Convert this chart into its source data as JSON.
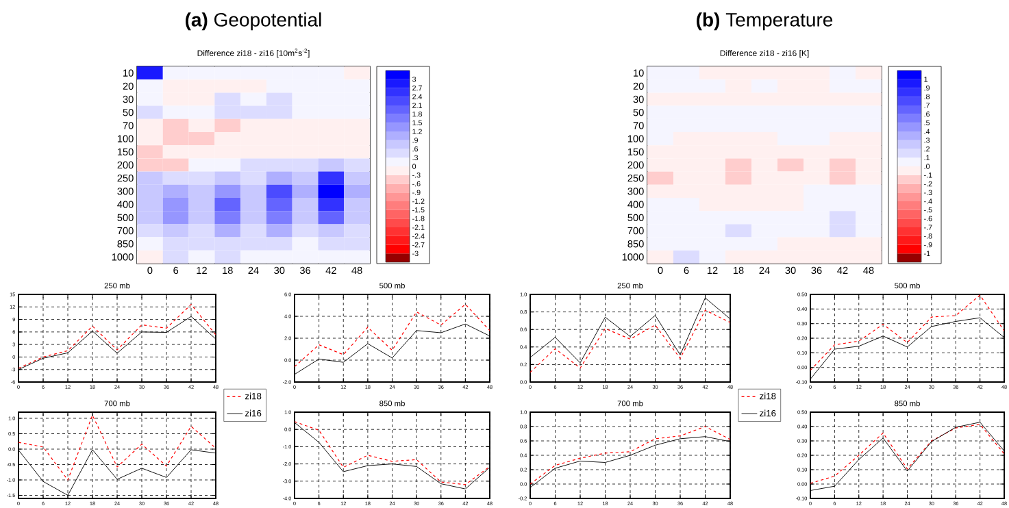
{
  "chart_data": [
    {
      "type": "heatmap",
      "title": "**(a)** Geopotential",
      "subtitle": "Difference zi18 - zi16 [10m$^{2}$s$^{-2}$]",
      "categories": [
        "0",
        "6",
        "12",
        "18",
        "24",
        "30",
        "36",
        "42",
        "48"
      ],
      "y_categories": [
        "10",
        "20",
        "30",
        "50",
        "70",
        "100",
        "150",
        "200",
        "250",
        "300",
        "400",
        "500",
        "700",
        "850",
        "1000"
      ],
      "cells": [
        [
          2.7,
          0.1,
          0.1,
          0.1,
          0.1,
          0.1,
          0.1,
          0.1,
          -0.1
        ],
        [
          0.1,
          -0.2,
          -0.1,
          -0.1,
          -0.1,
          0.1,
          0.1,
          0.1,
          0.1
        ],
        [
          0.1,
          -0.1,
          -0.1,
          0.4,
          0.1,
          0.4,
          0.1,
          0.1,
          0.1
        ],
        [
          0.4,
          0.1,
          0.1,
          0.4,
          0.4,
          0.4,
          0.1,
          0.1,
          0.1
        ],
        [
          -0.1,
          -0.4,
          -0.1,
          -0.4,
          -0.1,
          -0.1,
          -0.1,
          -0.1,
          -0.1
        ],
        [
          -0.1,
          -0.4,
          -0.4,
          -0.1,
          -0.1,
          -0.1,
          -0.1,
          -0.1,
          -0.1
        ],
        [
          -0.4,
          -0.1,
          -0.1,
          -0.1,
          -0.1,
          -0.1,
          -0.1,
          -0.1,
          -0.1
        ],
        [
          -0.4,
          -0.4,
          0.1,
          0.1,
          0.4,
          0.4,
          0.4,
          0.7,
          0.4
        ],
        [
          0.7,
          0.4,
          0.4,
          0.7,
          0.4,
          1.0,
          0.7,
          2.5,
          0.7
        ],
        [
          0.7,
          1.0,
          0.7,
          1.3,
          0.7,
          2.2,
          1.0,
          3.1,
          1.0
        ],
        [
          0.7,
          1.3,
          0.7,
          1.9,
          0.7,
          1.9,
          0.7,
          2.5,
          0.7
        ],
        [
          0.7,
          1.3,
          0.7,
          1.6,
          0.7,
          1.6,
          0.7,
          1.9,
          0.7
        ],
        [
          0.4,
          0.7,
          0.4,
          1.0,
          0.4,
          1.0,
          0.4,
          0.7,
          0.4
        ],
        [
          0.1,
          0.4,
          0.4,
          0.4,
          0.4,
          0.4,
          0.1,
          0.4,
          0.4
        ],
        [
          -0.1,
          0.4,
          0.1,
          0.4,
          0.1,
          0.1,
          0.1,
          0.1,
          0.1
        ]
      ],
      "clim": [
        -3.3,
        3.3
      ],
      "cticks": [
        3,
        {
          "value": 2.7,
          "label": "2.7"
        },
        {
          "value": 2.4,
          "label": "2.4"
        },
        {
          "value": 2.1,
          "label": "2.1"
        },
        {
          "value": 1.8,
          "label": "1.8"
        },
        {
          "value": 1.5,
          "label": "1.5"
        },
        {
          "value": 1.2,
          "label": "1.2"
        },
        {
          "value": 0.9,
          "label": ".9"
        },
        {
          "value": 0.6,
          "label": ".6"
        },
        {
          "value": 0.3,
          "label": ".3"
        },
        0,
        {
          "value": -0.3,
          "label": "-.3"
        },
        {
          "value": -0.6,
          "label": "-.6"
        },
        {
          "value": -0.9,
          "label": "-.9"
        },
        {
          "value": -1.2,
          "label": "-1.2"
        },
        {
          "value": -1.5,
          "label": "-1.5"
        },
        {
          "value": -1.8,
          "label": "-1.8"
        },
        {
          "value": -2.1,
          "label": "-2.1"
        },
        {
          "value": -2.4,
          "label": "-2.4"
        },
        {
          "value": -2.7,
          "label": "-2.7"
        },
        -3
      ]
    },
    {
      "type": "heatmap",
      "title": "**(b)** Temperature",
      "subtitle": "Difference zi18 - zi16 [K]",
      "categories": [
        "0",
        "6",
        "12",
        "18",
        "24",
        "30",
        "36",
        "42",
        "48"
      ],
      "y_categories": [
        "10",
        "20",
        "30",
        "50",
        "70",
        "100",
        "150",
        "200",
        "250",
        "300",
        "400",
        "500",
        "700",
        "850",
        "1000"
      ],
      "cells": [
        [
          0.05,
          0.05,
          -0.05,
          -0.05,
          -0.05,
          -0.05,
          -0.05,
          0.05,
          -0.05
        ],
        [
          0.05,
          0.05,
          0.05,
          -0.05,
          0.05,
          -0.05,
          -0.05,
          0.05,
          0.05
        ],
        [
          -0.05,
          -0.05,
          -0.05,
          -0.05,
          -0.05,
          -0.05,
          -0.05,
          -0.05,
          -0.05
        ],
        [
          0.05,
          0.05,
          0.05,
          0.05,
          0.05,
          0.05,
          0.05,
          0.05,
          0.05
        ],
        [
          0.05,
          0.05,
          0.05,
          0.05,
          0.05,
          0.05,
          0.05,
          0.05,
          0.05
        ],
        [
          0.05,
          -0.05,
          -0.05,
          -0.05,
          -0.05,
          0.05,
          0.05,
          -0.05,
          -0.05
        ],
        [
          -0.05,
          -0.05,
          -0.05,
          -0.05,
          -0.05,
          -0.05,
          -0.05,
          -0.05,
          -0.05
        ],
        [
          -0.05,
          -0.05,
          -0.05,
          -0.15,
          -0.05,
          -0.15,
          -0.05,
          -0.15,
          -0.05
        ],
        [
          -0.15,
          -0.05,
          -0.05,
          -0.15,
          -0.05,
          -0.05,
          -0.05,
          -0.15,
          -0.05
        ],
        [
          -0.05,
          -0.05,
          -0.05,
          -0.05,
          -0.05,
          -0.05,
          0.05,
          0.05,
          0.05
        ],
        [
          0.05,
          0.05,
          -0.05,
          -0.05,
          -0.05,
          -0.05,
          0.05,
          0.05,
          0.05
        ],
        [
          0.05,
          0.05,
          0.05,
          0.05,
          0.05,
          0.05,
          0.05,
          0.15,
          0.05
        ],
        [
          0.05,
          0.05,
          0.05,
          0.15,
          0.05,
          0.05,
          0.05,
          0.15,
          0.05
        ],
        [
          0.05,
          0.05,
          0.05,
          0.05,
          0.05,
          -0.05,
          -0.05,
          -0.05,
          -0.05
        ],
        [
          -0.05,
          0.15,
          0.05,
          -0.05,
          -0.05,
          -0.05,
          -0.05,
          -0.05,
          -0.05
        ]
      ],
      "clim": [
        -1.1,
        1.1
      ],
      "cticks": [
        1,
        {
          "value": 0.9,
          "label": ".9"
        },
        {
          "value": 0.8,
          "label": ".8"
        },
        {
          "value": 0.7,
          "label": ".7"
        },
        {
          "value": 0.6,
          "label": ".6"
        },
        {
          "value": 0.5,
          "label": ".5"
        },
        {
          "value": 0.4,
          "label": ".4"
        },
        {
          "value": 0.3,
          "label": ".3"
        },
        {
          "value": 0.2,
          "label": ".2"
        },
        {
          "value": 0.1,
          "label": ".1"
        },
        {
          "value": 0,
          "label": ".0"
        },
        {
          "value": -0.1,
          "label": "-.1"
        },
        {
          "value": -0.2,
          "label": "-.2"
        },
        {
          "value": -0.3,
          "label": "-.3"
        },
        {
          "value": -0.4,
          "label": "-.4"
        },
        {
          "value": -0.5,
          "label": "-.5"
        },
        {
          "value": -0.6,
          "label": "-.6"
        },
        {
          "value": -0.7,
          "label": "-.7"
        },
        {
          "value": -0.8,
          "label": "-.8"
        },
        {
          "value": -0.9,
          "label": "-.9"
        },
        -1
      ]
    },
    {
      "type": "line",
      "title": "250 mb",
      "x": [
        0,
        6,
        12,
        18,
        24,
        30,
        36,
        42,
        48
      ],
      "xlim": [
        0,
        48
      ],
      "xticks": [
        0,
        6,
        12,
        18,
        24,
        30,
        36,
        42,
        48
      ],
      "ylim": [
        -6,
        15
      ],
      "yticks": [
        -6,
        -3,
        0,
        3,
        6,
        9,
        12,
        15
      ],
      "grid": true,
      "marker": "none",
      "series": [
        {
          "color": "#ff0000",
          "line_style": "dashed",
          "values": [
            -2.7,
            0.0,
            1.5,
            7.4,
            1.7,
            7.7,
            6.9,
            12.6,
            5.3
          ]
        },
        {
          "color": "#000000",
          "line_style": "solid",
          "values": [
            -3.0,
            -0.3,
            1.0,
            6.2,
            0.9,
            6.0,
            5.9,
            9.7,
            4.3
          ]
        }
      ]
    },
    {
      "type": "line",
      "title": "500 mb",
      "x": [
        0,
        6,
        12,
        18,
        24,
        30,
        36,
        42,
        48
      ],
      "xlim": [
        0,
        48
      ],
      "xticks": [
        0,
        6,
        12,
        18,
        24,
        30,
        36,
        42,
        48
      ],
      "ylim": [
        -2,
        6
      ],
      "yticks": [
        {
          "value": -2,
          "label": "-2.0"
        },
        {
          "value": 0,
          "label": "0.0"
        },
        {
          "value": 2,
          "label": "2.0"
        },
        {
          "value": 4,
          "label": "4.0"
        },
        {
          "value": 6,
          "label": "6.0"
        }
      ],
      "grid": true,
      "marker": "none",
      "series": [
        {
          "color": "#ff0000",
          "line_style": "dashed",
          "values": [
            -0.6,
            1.4,
            0.5,
            3.0,
            0.9,
            4.4,
            3.2,
            5.1,
            2.7
          ]
        },
        {
          "color": "#000000",
          "line_style": "solid",
          "values": [
            -1.3,
            0.1,
            -0.2,
            1.5,
            0.2,
            2.7,
            2.5,
            3.3,
            2.2
          ]
        }
      ]
    },
    {
      "type": "line",
      "title": "250 mb",
      "x": [
        0,
        6,
        12,
        18,
        24,
        30,
        36,
        42,
        48
      ],
      "xlim": [
        0,
        48
      ],
      "xticks": [
        0,
        6,
        12,
        18,
        24,
        30,
        36,
        42,
        48
      ],
      "ylim": [
        0,
        1
      ],
      "yticks": [
        {
          "value": 0,
          "label": "0.0"
        },
        {
          "value": 0.2,
          "label": "0.2"
        },
        {
          "value": 0.4,
          "label": "0.4"
        },
        {
          "value": 0.6,
          "label": "0.6"
        },
        {
          "value": 0.8,
          "label": "0.8"
        },
        {
          "value": 1,
          "label": "1.0"
        }
      ],
      "grid": true,
      "marker": "none",
      "series": [
        {
          "color": "#ff0000",
          "line_style": "dashed",
          "values": [
            0.11,
            0.38,
            0.16,
            0.61,
            0.49,
            0.65,
            0.27,
            0.82,
            0.68
          ]
        },
        {
          "color": "#000000",
          "line_style": "solid",
          "values": [
            0.28,
            0.51,
            0.22,
            0.74,
            0.52,
            0.76,
            0.31,
            0.96,
            0.72
          ]
        }
      ]
    },
    {
      "type": "line",
      "title": "500 mb",
      "x": [
        0,
        6,
        12,
        18,
        24,
        30,
        36,
        42,
        48
      ],
      "xlim": [
        0,
        48
      ],
      "xticks": [
        0,
        6,
        12,
        18,
        24,
        30,
        36,
        42,
        48
      ],
      "ylim": [
        -0.1,
        0.5
      ],
      "yticks": [
        {
          "value": -0.1,
          "label": "-0.10"
        },
        {
          "value": 0,
          "label": "0.00"
        },
        {
          "value": 0.1,
          "label": "0.10"
        },
        {
          "value": 0.2,
          "label": "0.20"
        },
        {
          "value": 0.3,
          "label": "0.30"
        },
        {
          "value": 0.4,
          "label": "0.40"
        },
        {
          "value": 0.5,
          "label": "0.50"
        }
      ],
      "grid": true,
      "marker": "none",
      "series": [
        {
          "color": "#ff0000",
          "line_style": "dashed",
          "values": [
            -0.02,
            0.155,
            0.18,
            0.295,
            0.17,
            0.345,
            0.355,
            0.495,
            0.25
          ]
        },
        {
          "color": "#000000",
          "line_style": "solid",
          "values": [
            -0.08,
            0.125,
            0.145,
            0.215,
            0.14,
            0.28,
            0.315,
            0.34,
            0.205
          ]
        }
      ]
    },
    {
      "type": "line",
      "title": "700 mb",
      "x": [
        0,
        6,
        12,
        18,
        24,
        30,
        36,
        42,
        48
      ],
      "xlim": [
        0,
        48
      ],
      "xticks": [
        0,
        6,
        12,
        18,
        24,
        30,
        36,
        42,
        48
      ],
      "ylim": [
        -1.6,
        1.2
      ],
      "yticks": [
        {
          "value": -1.5,
          "label": "-1.5"
        },
        {
          "value": -1,
          "label": "-1.0"
        },
        {
          "value": -0.5,
          "label": "-0.5"
        },
        {
          "value": 0,
          "label": "0.0"
        },
        {
          "value": 0.5,
          "label": "0.5"
        },
        {
          "value": 1,
          "label": "1.0"
        }
      ],
      "grid": true,
      "marker": "none",
      "legend": "right",
      "series": [
        {
          "name": "zi18",
          "color": "#ff0000",
          "line_style": "dashed",
          "values": [
            0.22,
            0.07,
            -1.0,
            1.1,
            -0.58,
            0.16,
            -0.55,
            0.74,
            0.03
          ]
        },
        {
          "name": "zi16",
          "color": "#000000",
          "line_style": "solid",
          "values": [
            -0.03,
            -1.05,
            -1.5,
            -0.02,
            -0.98,
            -0.62,
            -0.92,
            -0.02,
            -0.13
          ]
        }
      ]
    },
    {
      "type": "line",
      "title": "850 mb",
      "x": [
        0,
        6,
        12,
        18,
        24,
        30,
        36,
        42,
        48
      ],
      "xlim": [
        0,
        48
      ],
      "xticks": [
        0,
        6,
        12,
        18,
        24,
        30,
        36,
        42,
        48
      ],
      "ylim": [
        -4,
        1
      ],
      "yticks": [
        {
          "value": -4,
          "label": "-4.0"
        },
        {
          "value": -3,
          "label": "-3.0"
        },
        {
          "value": -2,
          "label": "-2.0"
        },
        {
          "value": -1,
          "label": "-1.0"
        },
        {
          "value": 0,
          "label": "0.0"
        },
        {
          "value": 1,
          "label": "1.0"
        }
      ],
      "grid": true,
      "marker": "none",
      "series": [
        {
          "color": "#ff0000",
          "line_style": "dashed",
          "values": [
            0.45,
            -0.05,
            -2.2,
            -1.5,
            -1.85,
            -1.75,
            -3.05,
            -3.2,
            -2.15
          ]
        },
        {
          "color": "#000000",
          "line_style": "solid",
          "values": [
            0.4,
            -0.75,
            -2.45,
            -2.1,
            -2.0,
            -2.15,
            -3.15,
            -3.45,
            -2.2
          ]
        }
      ]
    },
    {
      "type": "line",
      "title": "700 mb",
      "x": [
        0,
        6,
        12,
        18,
        24,
        30,
        36,
        42,
        48
      ],
      "xlim": [
        0,
        48
      ],
      "xticks": [
        0,
        6,
        12,
        18,
        24,
        30,
        36,
        42,
        48
      ],
      "ylim": [
        -0.2,
        1
      ],
      "yticks": [
        {
          "value": -0.2,
          "label": "-0.2"
        },
        {
          "value": 0,
          "label": "0.0"
        },
        {
          "value": 0.2,
          "label": "0.2"
        },
        {
          "value": 0.4,
          "label": "0.4"
        },
        {
          "value": 0.6,
          "label": "0.6"
        },
        {
          "value": 0.8,
          "label": "0.8"
        },
        {
          "value": 1,
          "label": "1.0"
        }
      ],
      "grid": true,
      "marker": "none",
      "legend": "right",
      "series": [
        {
          "name": "zi18",
          "color": "#ff0000",
          "line_style": "dashed",
          "values": [
            0.0,
            0.26,
            0.36,
            0.43,
            0.45,
            0.63,
            0.67,
            0.8,
            0.62
          ]
        },
        {
          "name": "zi16",
          "color": "#000000",
          "line_style": "solid",
          "values": [
            -0.05,
            0.22,
            0.32,
            0.3,
            0.4,
            0.54,
            0.63,
            0.66,
            0.59
          ]
        }
      ]
    },
    {
      "type": "line",
      "title": "850 mb",
      "x": [
        0,
        6,
        12,
        18,
        24,
        30,
        36,
        42,
        48
      ],
      "xlim": [
        0,
        48
      ],
      "xticks": [
        0,
        6,
        12,
        18,
        24,
        30,
        36,
        42,
        48
      ],
      "ylim": [
        -0.1,
        0.5
      ],
      "yticks": [
        {
          "value": -0.1,
          "label": "-0.10"
        },
        {
          "value": 0,
          "label": "0.00"
        },
        {
          "value": 0.1,
          "label": "0.10"
        },
        {
          "value": 0.2,
          "label": "0.20"
        },
        {
          "value": 0.3,
          "label": "0.30"
        },
        {
          "value": 0.4,
          "label": "0.40"
        },
        {
          "value": 0.5,
          "label": "0.50"
        }
      ],
      "grid": true,
      "marker": "none",
      "series": [
        {
          "color": "#ff0000",
          "line_style": "dashed",
          "values": [
            0.005,
            0.055,
            0.2,
            0.355,
            0.105,
            0.3,
            0.39,
            0.415,
            0.21
          ]
        },
        {
          "color": "#000000",
          "line_style": "solid",
          "values": [
            -0.045,
            -0.015,
            0.17,
            0.32,
            0.09,
            0.295,
            0.395,
            0.43,
            0.23
          ]
        }
      ]
    }
  ]
}
